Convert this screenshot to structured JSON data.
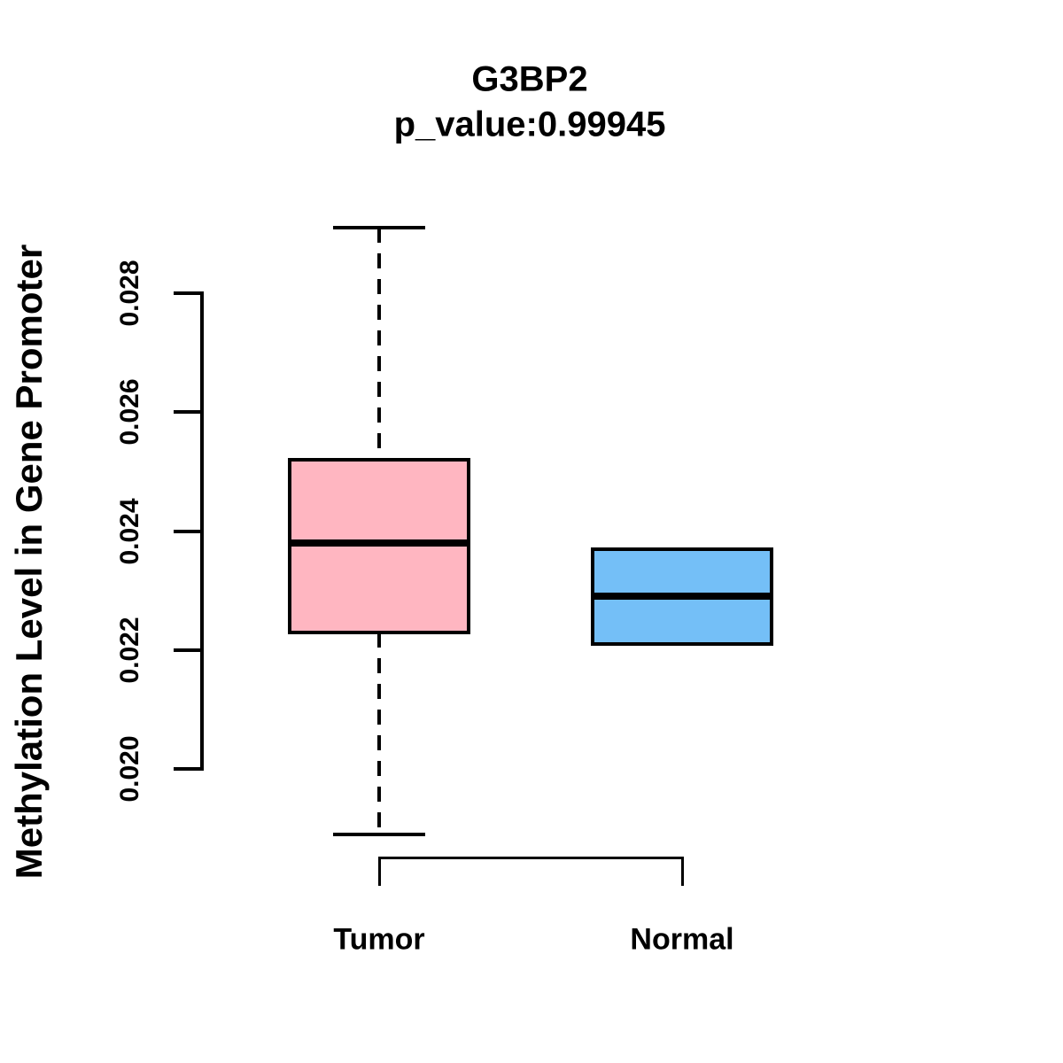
{
  "chart_data": {
    "type": "boxplot",
    "title": "G3BP2",
    "subtitle": "p_value:0.99945",
    "ylabel": "Methylation Level in Gene Promoter",
    "xlabel": "",
    "legend": "none",
    "grid": false,
    "ylim": [
      0.0185,
      0.0295
    ],
    "yticks": {
      "values": [
        0.02,
        0.022,
        0.024,
        0.026,
        0.028
      ],
      "labels": [
        "0.020",
        "0.022",
        "0.024",
        "0.026",
        "0.028"
      ]
    },
    "categories": [
      "Tumor",
      "Normal"
    ],
    "groups": [
      {
        "label": "Tumor",
        "color": "#FFB6C1",
        "lower_whisker": 0.0189,
        "q1": 0.0223,
        "median": 0.0238,
        "q3": 0.0252,
        "upper_whisker": 0.0291
      },
      {
        "label": "Normal",
        "color": "#74BFF7",
        "lower_whisker": 0.0221,
        "q1": 0.0221,
        "median": 0.0229,
        "q3": 0.0237,
        "upper_whisker": 0.0237
      }
    ],
    "colors": {
      "box_border": "#000000",
      "median_line": "#000000",
      "axis": "#000000",
      "background": "#ffffff"
    }
  }
}
